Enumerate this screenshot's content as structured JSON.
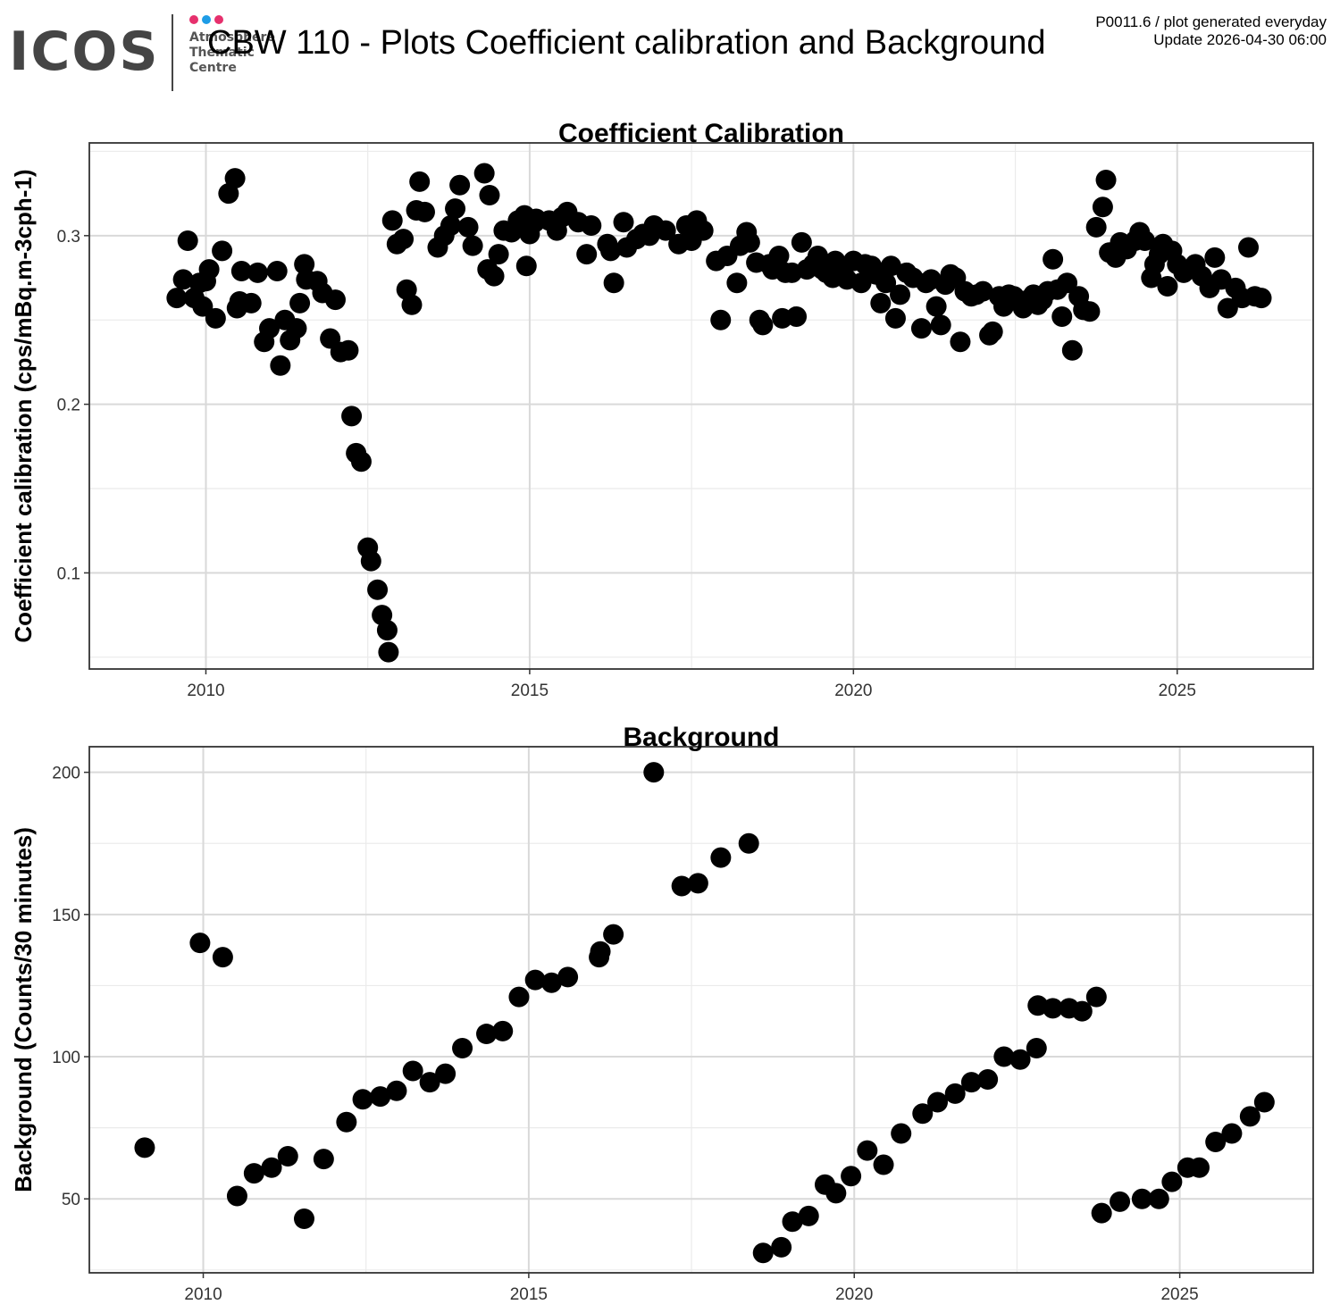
{
  "header": {
    "logo": {
      "word": "ICOS",
      "tagline": [
        "Atmosphere",
        "Thematic",
        "Centre"
      ],
      "dot_colors": [
        "#e6306d",
        "#1e9ce6",
        "#e6306d"
      ],
      "word_color": "#454545"
    },
    "title": "CBW 110 - Plots Coefficient calibration and Background",
    "meta_line1": "P0011.6 / plot generated everyday",
    "meta_line2": "Update  2026-04-30 06:00"
  },
  "chart_data": [
    {
      "type": "scatter",
      "title": "Coefficient Calibration",
      "ylabel": "Coefficient calibration (cps/mBq.m-3cph-1)",
      "xlabel": "",
      "xlim": [
        2008.2,
        2027.1
      ],
      "ylim": [
        0.043,
        0.355
      ],
      "xticks": [
        2010,
        2015,
        2020,
        2025
      ],
      "yticks": [
        0.1,
        0.2,
        0.3
      ],
      "grid": true,
      "marker_color": "#000000",
      "points": [
        [
          2009.55,
          0.263
        ],
        [
          2009.65,
          0.274
        ],
        [
          2009.72,
          0.297
        ],
        [
          2009.82,
          0.263
        ],
        [
          2009.9,
          0.272
        ],
        [
          2009.95,
          0.258
        ],
        [
          2010.0,
          0.273
        ],
        [
          2010.05,
          0.28
        ],
        [
          2010.15,
          0.251
        ],
        [
          2010.25,
          0.291
        ],
        [
          2010.35,
          0.325
        ],
        [
          2010.45,
          0.334
        ],
        [
          2010.48,
          0.257
        ],
        [
          2010.52,
          0.261
        ],
        [
          2010.55,
          0.279
        ],
        [
          2010.7,
          0.26
        ],
        [
          2010.8,
          0.278
        ],
        [
          2010.9,
          0.237
        ],
        [
          2010.98,
          0.245
        ],
        [
          2011.1,
          0.279
        ],
        [
          2011.15,
          0.223
        ],
        [
          2011.22,
          0.25
        ],
        [
          2011.3,
          0.238
        ],
        [
          2011.4,
          0.245
        ],
        [
          2011.45,
          0.26
        ],
        [
          2011.52,
          0.283
        ],
        [
          2011.55,
          0.274
        ],
        [
          2011.72,
          0.273
        ],
        [
          2011.8,
          0.266
        ],
        [
          2011.92,
          0.239
        ],
        [
          2012.0,
          0.262
        ],
        [
          2012.08,
          0.231
        ],
        [
          2012.2,
          0.232
        ],
        [
          2012.25,
          0.193
        ],
        [
          2012.32,
          0.171
        ],
        [
          2012.4,
          0.166
        ],
        [
          2012.5,
          0.115
        ],
        [
          2012.55,
          0.107
        ],
        [
          2012.65,
          0.09
        ],
        [
          2012.72,
          0.075
        ],
        [
          2012.8,
          0.066
        ],
        [
          2012.82,
          0.053
        ],
        [
          2012.88,
          0.309
        ],
        [
          2012.95,
          0.295
        ],
        [
          2013.05,
          0.298
        ],
        [
          2013.1,
          0.268
        ],
        [
          2013.18,
          0.259
        ],
        [
          2013.25,
          0.315
        ],
        [
          2013.3,
          0.332
        ],
        [
          2013.38,
          0.314
        ],
        [
          2013.58,
          0.293
        ],
        [
          2013.68,
          0.3
        ],
        [
          2013.78,
          0.306
        ],
        [
          2013.85,
          0.316
        ],
        [
          2013.92,
          0.33
        ],
        [
          2014.05,
          0.305
        ],
        [
          2014.12,
          0.294
        ],
        [
          2014.3,
          0.337
        ],
        [
          2014.35,
          0.28
        ],
        [
          2014.38,
          0.324
        ],
        [
          2014.45,
          0.276
        ],
        [
          2014.52,
          0.289
        ],
        [
          2014.6,
          0.303
        ],
        [
          2014.72,
          0.302
        ],
        [
          2014.82,
          0.309
        ],
        [
          2014.92,
          0.312
        ],
        [
          2014.95,
          0.282
        ],
        [
          2015.0,
          0.301
        ],
        [
          2015.08,
          0.308
        ],
        [
          2015.1,
          0.31
        ],
        [
          2015.3,
          0.309
        ],
        [
          2015.42,
          0.303
        ],
        [
          2015.5,
          0.311
        ],
        [
          2015.58,
          0.314
        ],
        [
          2015.75,
          0.308
        ],
        [
          2015.88,
          0.289
        ],
        [
          2015.95,
          0.306
        ],
        [
          2016.2,
          0.295
        ],
        [
          2016.25,
          0.291
        ],
        [
          2016.3,
          0.272
        ],
        [
          2016.45,
          0.308
        ],
        [
          2016.5,
          0.293
        ],
        [
          2016.65,
          0.298
        ],
        [
          2016.75,
          0.301
        ],
        [
          2016.85,
          0.3
        ],
        [
          2016.92,
          0.306
        ],
        [
          2017.1,
          0.303
        ],
        [
          2017.3,
          0.295
        ],
        [
          2017.42,
          0.306
        ],
        [
          2017.5,
          0.297
        ],
        [
          2017.58,
          0.309
        ],
        [
          2017.68,
          0.303
        ],
        [
          2017.88,
          0.285
        ],
        [
          2017.95,
          0.25
        ],
        [
          2018.05,
          0.288
        ],
        [
          2018.2,
          0.272
        ],
        [
          2018.25,
          0.294
        ],
        [
          2018.35,
          0.302
        ],
        [
          2018.4,
          0.296
        ],
        [
          2018.5,
          0.284
        ],
        [
          2018.55,
          0.25
        ],
        [
          2018.6,
          0.247
        ],
        [
          2018.7,
          0.283
        ],
        [
          2018.75,
          0.28
        ],
        [
          2018.85,
          0.288
        ],
        [
          2018.9,
          0.251
        ],
        [
          2018.95,
          0.278
        ],
        [
          2019.05,
          0.278
        ],
        [
          2019.12,
          0.252
        ],
        [
          2019.2,
          0.296
        ],
        [
          2019.28,
          0.28
        ],
        [
          2019.38,
          0.283
        ],
        [
          2019.45,
          0.288
        ],
        [
          2019.52,
          0.28
        ],
        [
          2019.58,
          0.278
        ],
        [
          2019.68,
          0.275
        ],
        [
          2019.72,
          0.285
        ],
        [
          2019.82,
          0.278
        ],
        [
          2019.9,
          0.274
        ],
        [
          2020.0,
          0.285
        ],
        [
          2020.12,
          0.272
        ],
        [
          2020.18,
          0.283
        ],
        [
          2020.28,
          0.282
        ],
        [
          2020.35,
          0.277
        ],
        [
          2020.42,
          0.26
        ],
        [
          2020.5,
          0.272
        ],
        [
          2020.58,
          0.282
        ],
        [
          2020.65,
          0.251
        ],
        [
          2020.72,
          0.265
        ],
        [
          2020.82,
          0.278
        ],
        [
          2020.92,
          0.275
        ],
        [
          2021.05,
          0.245
        ],
        [
          2021.12,
          0.272
        ],
        [
          2021.2,
          0.274
        ],
        [
          2021.28,
          0.258
        ],
        [
          2021.35,
          0.247
        ],
        [
          2021.42,
          0.271
        ],
        [
          2021.5,
          0.277
        ],
        [
          2021.58,
          0.275
        ],
        [
          2021.65,
          0.237
        ],
        [
          2021.72,
          0.267
        ],
        [
          2021.82,
          0.264
        ],
        [
          2021.9,
          0.265
        ],
        [
          2022.0,
          0.267
        ],
        [
          2022.1,
          0.241
        ],
        [
          2022.15,
          0.243
        ],
        [
          2022.25,
          0.264
        ],
        [
          2022.32,
          0.258
        ],
        [
          2022.4,
          0.265
        ],
        [
          2022.48,
          0.264
        ],
        [
          2022.55,
          0.261
        ],
        [
          2022.62,
          0.257
        ],
        [
          2022.7,
          0.262
        ],
        [
          2022.78,
          0.265
        ],
        [
          2022.85,
          0.259
        ],
        [
          2022.92,
          0.262
        ],
        [
          2023.0,
          0.267
        ],
        [
          2023.08,
          0.286
        ],
        [
          2023.15,
          0.268
        ],
        [
          2023.22,
          0.252
        ],
        [
          2023.3,
          0.272
        ],
        [
          2023.38,
          0.232
        ],
        [
          2023.48,
          0.264
        ],
        [
          2023.55,
          0.256
        ],
        [
          2023.65,
          0.255
        ],
        [
          2023.75,
          0.305
        ],
        [
          2023.85,
          0.317
        ],
        [
          2023.9,
          0.333
        ],
        [
          2023.95,
          0.29
        ],
        [
          2024.05,
          0.287
        ],
        [
          2024.12,
          0.296
        ],
        [
          2024.22,
          0.292
        ],
        [
          2024.35,
          0.297
        ],
        [
          2024.42,
          0.302
        ],
        [
          2024.5,
          0.297
        ],
        [
          2024.6,
          0.275
        ],
        [
          2024.65,
          0.283
        ],
        [
          2024.72,
          0.289
        ],
        [
          2024.78,
          0.295
        ],
        [
          2024.85,
          0.27
        ],
        [
          2024.92,
          0.291
        ],
        [
          2025.0,
          0.283
        ],
        [
          2025.1,
          0.278
        ],
        [
          2025.18,
          0.28
        ],
        [
          2025.28,
          0.283
        ],
        [
          2025.38,
          0.276
        ],
        [
          2025.5,
          0.269
        ],
        [
          2025.58,
          0.287
        ],
        [
          2025.68,
          0.274
        ],
        [
          2025.78,
          0.257
        ],
        [
          2025.9,
          0.269
        ],
        [
          2026.0,
          0.263
        ],
        [
          2026.1,
          0.293
        ],
        [
          2026.2,
          0.264
        ],
        [
          2026.3,
          0.263
        ]
      ]
    },
    {
      "type": "scatter",
      "title": "Background",
      "ylabel": "Background (Counts/30 minutes)",
      "xlabel": "",
      "xlim": [
        2008.25,
        2027.05
      ],
      "ylim": [
        24,
        209
      ],
      "xticks": [
        2010,
        2015,
        2020,
        2025
      ],
      "yticks": [
        50,
        100,
        150,
        200
      ],
      "grid": true,
      "marker_color": "#000000",
      "points": [
        [
          2009.1,
          68
        ],
        [
          2009.95,
          140
        ],
        [
          2010.3,
          135
        ],
        [
          2010.52,
          51
        ],
        [
          2010.78,
          59
        ],
        [
          2011.05,
          61
        ],
        [
          2011.3,
          65
        ],
        [
          2011.55,
          43
        ],
        [
          2011.85,
          64
        ],
        [
          2012.2,
          77
        ],
        [
          2012.45,
          85
        ],
        [
          2012.72,
          86
        ],
        [
          2012.97,
          88
        ],
        [
          2013.22,
          95
        ],
        [
          2013.48,
          91
        ],
        [
          2013.72,
          94
        ],
        [
          2013.98,
          103
        ],
        [
          2014.35,
          108
        ],
        [
          2014.6,
          109
        ],
        [
          2014.85,
          121
        ],
        [
          2015.1,
          127
        ],
        [
          2015.35,
          126
        ],
        [
          2015.6,
          128
        ],
        [
          2016.08,
          135
        ],
        [
          2016.1,
          137
        ],
        [
          2016.3,
          143
        ],
        [
          2016.92,
          200
        ],
        [
          2017.35,
          160
        ],
        [
          2017.6,
          161
        ],
        [
          2017.95,
          170
        ],
        [
          2018.38,
          175
        ],
        [
          2018.6,
          31
        ],
        [
          2018.88,
          33
        ],
        [
          2019.05,
          42
        ],
        [
          2019.3,
          44
        ],
        [
          2019.55,
          55
        ],
        [
          2019.72,
          52
        ],
        [
          2019.95,
          58
        ],
        [
          2020.2,
          67
        ],
        [
          2020.45,
          62
        ],
        [
          2020.72,
          73
        ],
        [
          2021.05,
          80
        ],
        [
          2021.28,
          84
        ],
        [
          2021.55,
          87
        ],
        [
          2021.8,
          91
        ],
        [
          2022.05,
          92
        ],
        [
          2022.3,
          100
        ],
        [
          2022.55,
          99
        ],
        [
          2022.8,
          103
        ],
        [
          2022.82,
          118
        ],
        [
          2023.05,
          117
        ],
        [
          2023.3,
          117
        ],
        [
          2023.5,
          116
        ],
        [
          2023.72,
          121
        ],
        [
          2023.8,
          45
        ],
        [
          2024.08,
          49
        ],
        [
          2024.42,
          50
        ],
        [
          2024.68,
          50
        ],
        [
          2024.88,
          56
        ],
        [
          2025.12,
          61
        ],
        [
          2025.3,
          61
        ],
        [
          2025.55,
          70
        ],
        [
          2025.8,
          73
        ],
        [
          2026.08,
          79
        ],
        [
          2026.3,
          84
        ]
      ]
    }
  ]
}
